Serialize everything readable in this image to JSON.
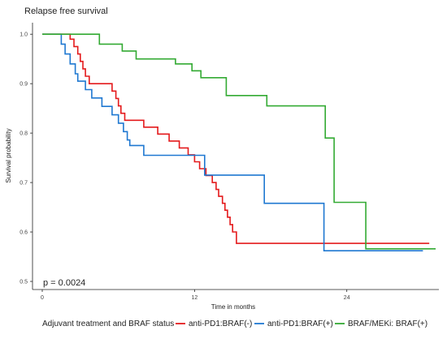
{
  "chart_data": {
    "type": "line",
    "title": "Relapse free survival",
    "xlabel": "Time in months",
    "ylabel": "Survival probability",
    "xlim": [
      0,
      31
    ],
    "ylim": [
      0.5,
      1.02
    ],
    "x_ticks": [
      0,
      12,
      24
    ],
    "x_tick_labels": [
      "0",
      "12",
      "24"
    ],
    "y_ticks": [
      0.5,
      0.6,
      0.7,
      0.8,
      0.9,
      1.0
    ],
    "y_tick_labels": [
      "0.5",
      "0.6",
      "0.7",
      "0.8",
      "0.9",
      "1.0"
    ],
    "grid": false,
    "legend_placement": "bottom",
    "legend_title": "Adjuvant treatment and BRAF status",
    "annotation": "p = 0.0024",
    "series": [
      {
        "name": "anti-PD1:BRAF(-)",
        "color": "#e41a1c",
        "points": [
          [
            0,
            1.0
          ],
          [
            2.2,
            1.0
          ],
          [
            2.2,
            0.99
          ],
          [
            2.5,
            0.99
          ],
          [
            2.5,
            0.975
          ],
          [
            2.8,
            0.975
          ],
          [
            2.8,
            0.96
          ],
          [
            3.0,
            0.96
          ],
          [
            3.0,
            0.945
          ],
          [
            3.2,
            0.945
          ],
          [
            3.2,
            0.93
          ],
          [
            3.4,
            0.93
          ],
          [
            3.4,
            0.915
          ],
          [
            3.7,
            0.915
          ],
          [
            3.7,
            0.9
          ],
          [
            5.5,
            0.9
          ],
          [
            5.5,
            0.885
          ],
          [
            5.8,
            0.885
          ],
          [
            5.8,
            0.87
          ],
          [
            6.0,
            0.87
          ],
          [
            6.0,
            0.855
          ],
          [
            6.2,
            0.855
          ],
          [
            6.2,
            0.84
          ],
          [
            6.5,
            0.84
          ],
          [
            6.5,
            0.826
          ],
          [
            8.0,
            0.826
          ],
          [
            8.0,
            0.812
          ],
          [
            9.1,
            0.812
          ],
          [
            9.1,
            0.798
          ],
          [
            10.0,
            0.798
          ],
          [
            10.0,
            0.784
          ],
          [
            10.8,
            0.784
          ],
          [
            10.8,
            0.77
          ],
          [
            11.5,
            0.77
          ],
          [
            11.5,
            0.756
          ],
          [
            12.0,
            0.756
          ],
          [
            12.0,
            0.742
          ],
          [
            12.4,
            0.742
          ],
          [
            12.4,
            0.728
          ],
          [
            12.9,
            0.728
          ],
          [
            12.9,
            0.714
          ],
          [
            13.4,
            0.714
          ],
          [
            13.4,
            0.7
          ],
          [
            13.7,
            0.7
          ],
          [
            13.7,
            0.686
          ],
          [
            13.9,
            0.686
          ],
          [
            13.9,
            0.672
          ],
          [
            14.2,
            0.672
          ],
          [
            14.2,
            0.658
          ],
          [
            14.4,
            0.658
          ],
          [
            14.4,
            0.644
          ],
          [
            14.6,
            0.644
          ],
          [
            14.6,
            0.63
          ],
          [
            14.8,
            0.63
          ],
          [
            14.8,
            0.615
          ],
          [
            15.0,
            0.615
          ],
          [
            15.0,
            0.6
          ],
          [
            15.3,
            0.6
          ],
          [
            15.3,
            0.577
          ],
          [
            30.5,
            0.577
          ]
        ]
      },
      {
        "name": "anti-PD1:BRAF(+)",
        "color": "#1f78d1",
        "points": [
          [
            0,
            1.0
          ],
          [
            1.5,
            1.0
          ],
          [
            1.5,
            0.98
          ],
          [
            1.8,
            0.98
          ],
          [
            1.8,
            0.96
          ],
          [
            2.2,
            0.96
          ],
          [
            2.2,
            0.94
          ],
          [
            2.6,
            0.94
          ],
          [
            2.6,
            0.92
          ],
          [
            2.8,
            0.92
          ],
          [
            2.8,
            0.905
          ],
          [
            3.4,
            0.905
          ],
          [
            3.4,
            0.888
          ],
          [
            3.9,
            0.888
          ],
          [
            3.9,
            0.871
          ],
          [
            4.7,
            0.871
          ],
          [
            4.7,
            0.854
          ],
          [
            5.5,
            0.854
          ],
          [
            5.5,
            0.837
          ],
          [
            6.0,
            0.837
          ],
          [
            6.0,
            0.82
          ],
          [
            6.4,
            0.82
          ],
          [
            6.4,
            0.803
          ],
          [
            6.7,
            0.803
          ],
          [
            6.7,
            0.786
          ],
          [
            6.9,
            0.786
          ],
          [
            6.9,
            0.775
          ],
          [
            7.0,
            0.775
          ],
          [
            7.0,
            0.775
          ],
          [
            8.0,
            0.775
          ],
          [
            8.0,
            0.755
          ],
          [
            12.8,
            0.755
          ],
          [
            12.8,
            0.715
          ],
          [
            17.5,
            0.715
          ],
          [
            17.5,
            0.658
          ],
          [
            22.2,
            0.658
          ],
          [
            22.2,
            0.562
          ],
          [
            30.0,
            0.562
          ]
        ]
      },
      {
        "name": "BRAF/MEKi: BRAF(+)",
        "color": "#33aa33",
        "points": [
          [
            0,
            1.0
          ],
          [
            4.5,
            1.0
          ],
          [
            4.5,
            0.98
          ],
          [
            6.3,
            0.98
          ],
          [
            6.3,
            0.966
          ],
          [
            7.4,
            0.966
          ],
          [
            7.4,
            0.95
          ],
          [
            10.5,
            0.95
          ],
          [
            10.5,
            0.94
          ],
          [
            11.8,
            0.94
          ],
          [
            11.8,
            0.926
          ],
          [
            12.5,
            0.926
          ],
          [
            12.5,
            0.912
          ],
          [
            14.5,
            0.912
          ],
          [
            14.5,
            0.876
          ],
          [
            17.7,
            0.876
          ],
          [
            17.7,
            0.855
          ],
          [
            22.3,
            0.855
          ],
          [
            22.3,
            0.79
          ],
          [
            23.0,
            0.79
          ],
          [
            23.0,
            0.66
          ],
          [
            25.5,
            0.66
          ],
          [
            25.5,
            0.566
          ],
          [
            31.0,
            0.566
          ]
        ]
      }
    ]
  }
}
